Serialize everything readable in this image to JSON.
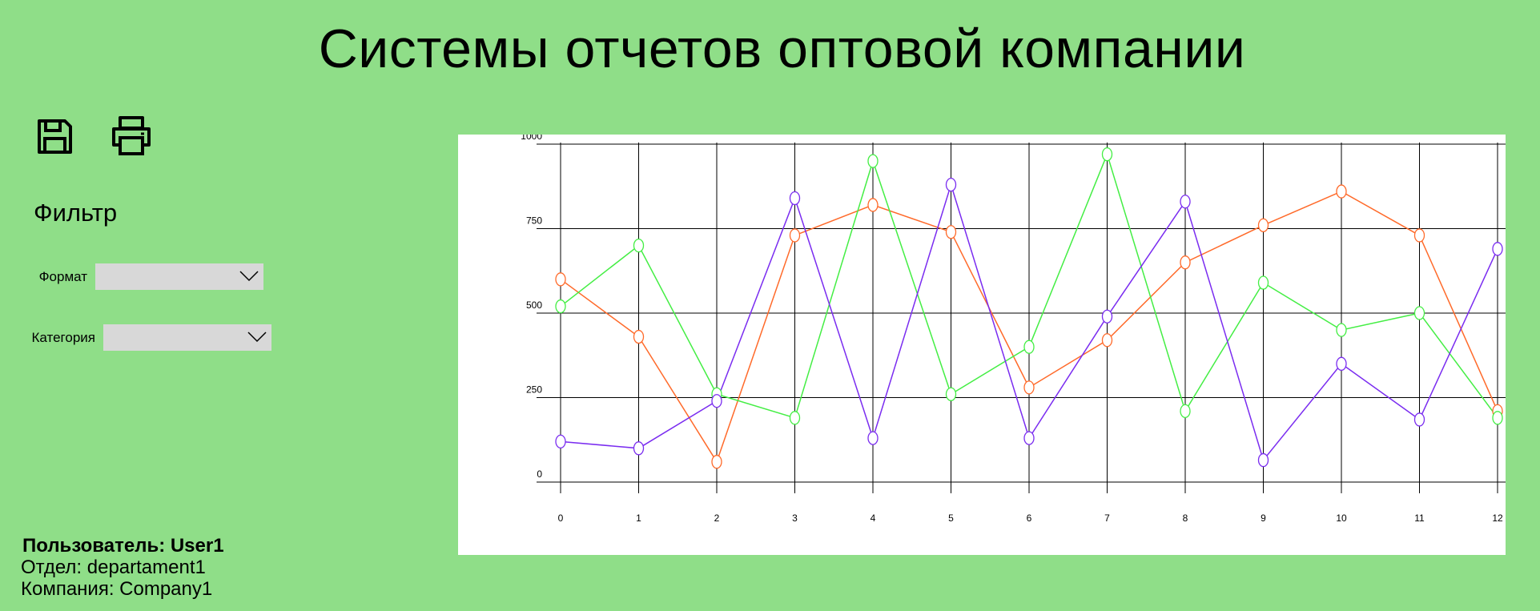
{
  "header": {
    "title": "Системы отчетов оптовой компании"
  },
  "toolbar": {
    "save_icon": "save-icon",
    "print_icon": "printer-icon"
  },
  "filter": {
    "title": "Фильтр",
    "format": {
      "label": "Формат",
      "value": "",
      "icon": "chevron-down-icon"
    },
    "category": {
      "label": "Категория",
      "value": "",
      "icon": "chevron-down-icon"
    }
  },
  "footer": {
    "user": "Пользователь: User1",
    "department": "Отдел: departament1",
    "company": "Компания: Company1"
  },
  "chart_data": {
    "type": "line",
    "x": [
      0,
      1,
      2,
      3,
      4,
      5,
      6,
      7,
      8,
      9,
      10,
      11,
      12
    ],
    "ylim": [
      0,
      1000
    ],
    "xlim": [
      0,
      12
    ],
    "y_ticks": [
      0,
      250,
      500,
      750,
      1000
    ],
    "grid": true,
    "legend": "none",
    "series": [
      {
        "color": "#ff6a2a",
        "values": [
          600,
          430,
          60,
          730,
          820,
          740,
          280,
          420,
          650,
          760,
          860,
          730,
          210
        ]
      },
      {
        "color": "#44ee44",
        "values": [
          520,
          700,
          260,
          190,
          950,
          260,
          400,
          970,
          210,
          590,
          450,
          500,
          190
        ]
      },
      {
        "color": "#7a2cf0",
        "values": [
          120,
          100,
          240,
          840,
          130,
          880,
          130,
          490,
          830,
          65,
          350,
          185,
          690
        ]
      }
    ]
  }
}
